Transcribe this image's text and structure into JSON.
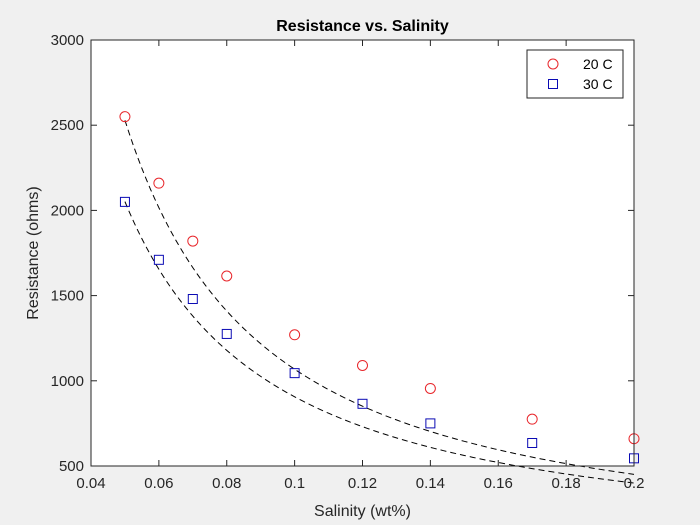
{
  "chart_data": {
    "type": "scatter",
    "title": "Resistance vs. Salinity",
    "xlabel": "Salinity (wt%)",
    "ylabel": "Resistance (ohms)",
    "xlim": [
      0.04,
      0.2
    ],
    "ylim": [
      500,
      3000
    ],
    "xticks": [
      0.04,
      0.06,
      0.08,
      0.1,
      0.12,
      0.14,
      0.16,
      0.18,
      0.2
    ],
    "xtick_labels": [
      "0.04",
      "0.06",
      "0.08",
      "0.1",
      "0.12",
      "0.14",
      "0.16",
      "0.18",
      "0.2"
    ],
    "yticks": [
      500,
      1000,
      1500,
      2000,
      2500,
      3000
    ],
    "ytick_labels": [
      "500",
      "1000",
      "1500",
      "2000",
      "2500",
      "3000"
    ],
    "grid": false,
    "legend_position": "top-right",
    "series": [
      {
        "name": "20 C",
        "marker": "circle",
        "color": "#e8262b",
        "x": [
          0.05,
          0.06,
          0.07,
          0.08,
          0.1,
          0.12,
          0.14,
          0.17,
          0.2
        ],
        "y": [
          2550,
          2160,
          1820,
          1615,
          1270,
          1090,
          955,
          775,
          660
        ],
        "fit": {
          "style": "dashed",
          "color": "#000000",
          "model": "a/x^b",
          "a": 60.9,
          "b": 1.2439
        }
      },
      {
        "name": "30 C",
        "marker": "square",
        "color": "#0a0ab4",
        "x": [
          0.05,
          0.06,
          0.07,
          0.08,
          0.1,
          0.12,
          0.14,
          0.17,
          0.2
        ],
        "y": [
          2050,
          1710,
          1480,
          1275,
          1045,
          865,
          750,
          635,
          545
        ],
        "fit": {
          "style": "dashed",
          "color": "#000000",
          "model": "a/x^b",
          "a": 60.0,
          "b": 1.179
        }
      }
    ]
  }
}
